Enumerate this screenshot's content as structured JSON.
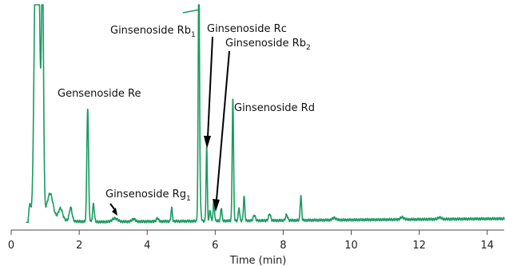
{
  "chart_data": {
    "type": "line",
    "xlabel": "Time (min)",
    "ylabel": "",
    "title": "",
    "xlim": [
      0,
      14.5
    ],
    "ylim": [
      0,
      100
    ],
    "x_ticks": [
      0,
      2,
      4,
      6,
      8,
      10,
      12,
      14
    ],
    "x_tick_labels": [
      "0",
      "2",
      "4",
      "6",
      "8",
      "10",
      "12",
      "14"
    ],
    "grid": false,
    "line_color": "#1a9a62",
    "annotation_color": "#000000",
    "baseline": 3.5,
    "peaks": [
      {
        "x": 0.55,
        "height": 8,
        "width": 0.03
      },
      {
        "x": 0.72,
        "height": 110,
        "width": 0.05
      },
      {
        "x": 0.8,
        "height": 110,
        "width": 0.05
      },
      {
        "x": 0.92,
        "height": 110,
        "width": 0.03
      },
      {
        "x": 1.15,
        "height": 10,
        "width": 0.08
      },
      {
        "x": 1.45,
        "height": 5,
        "width": 0.06
      },
      {
        "x": 1.75,
        "height": 6,
        "width": 0.04
      },
      {
        "x": 2.25,
        "height": 51,
        "width": 0.025
      },
      {
        "x": 2.42,
        "height": 8,
        "width": 0.025
      },
      {
        "x": 3.05,
        "height": 1.5,
        "width": 0.08
      },
      {
        "x": 3.6,
        "height": 1.2,
        "width": 0.05
      },
      {
        "x": 4.3,
        "height": 1.5,
        "width": 0.03
      },
      {
        "x": 4.72,
        "height": 6,
        "width": 0.02
      },
      {
        "x": 5.52,
        "height": 110,
        "width": 0.02
      },
      {
        "x": 5.57,
        "height": 5,
        "width": 0.02
      },
      {
        "x": 5.75,
        "height": 33,
        "width": 0.018
      },
      {
        "x": 5.85,
        "height": 5,
        "width": 0.02
      },
      {
        "x": 5.96,
        "height": 9,
        "width": 0.02
      },
      {
        "x": 6.18,
        "height": 6,
        "width": 0.02
      },
      {
        "x": 6.52,
        "height": 55,
        "width": 0.02
      },
      {
        "x": 6.7,
        "height": 6,
        "width": 0.02
      },
      {
        "x": 6.85,
        "height": 11,
        "width": 0.02
      },
      {
        "x": 7.15,
        "height": 2.5,
        "width": 0.03
      },
      {
        "x": 7.6,
        "height": 3,
        "width": 0.03
      },
      {
        "x": 8.1,
        "height": 2.5,
        "width": 0.03
      },
      {
        "x": 8.52,
        "height": 11,
        "width": 0.02
      },
      {
        "x": 9.5,
        "height": 1.0,
        "width": 0.05
      },
      {
        "x": 11.5,
        "height": 1.0,
        "width": 0.05
      },
      {
        "x": 12.6,
        "height": 0.8,
        "width": 0.05
      }
    ],
    "annotations": [
      {
        "text": "Gensenoside Re",
        "sub": "",
        "x": 2.25
      },
      {
        "text": "Ginsenoside Rg",
        "sub": "1",
        "x": 3.05
      },
      {
        "text": "Ginsenoside Rb",
        "sub": "1",
        "x": 5.52
      },
      {
        "text": "Ginsenoside Rc",
        "sub": "",
        "x": 5.75
      },
      {
        "text": "Ginsenoside Rb",
        "sub": "2",
        "x": 5.96
      },
      {
        "text": "Ginsenoside Rd",
        "sub": "",
        "x": 6.52
      }
    ]
  }
}
